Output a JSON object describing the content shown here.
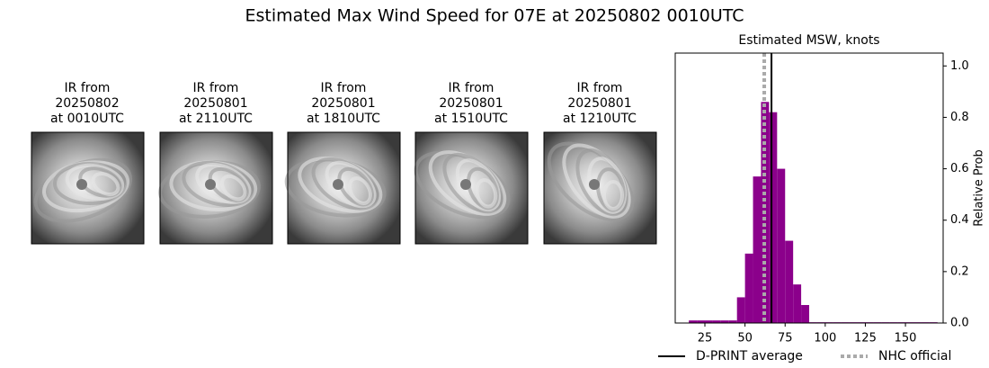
{
  "title": "Estimated Max Wind Speed for 07E at 20250802 0010UTC",
  "panels": [
    {
      "lines": [
        "IR from",
        "20250802",
        "at 0010UTC"
      ]
    },
    {
      "lines": [
        "IR from",
        "20250801",
        "at 2110UTC"
      ]
    },
    {
      "lines": [
        "IR from",
        "20250801",
        "at 1810UTC"
      ]
    },
    {
      "lines": [
        "IR from",
        "20250801",
        "at 1510UTC"
      ]
    },
    {
      "lines": [
        "IR from",
        "20250801",
        "at 1210UTC"
      ]
    }
  ],
  "chart_data": {
    "type": "histogram",
    "title": "Estimated MSW, knots",
    "y_label": "Relative Prob",
    "color": "#8b008b",
    "bins": [
      15,
      20,
      25,
      30,
      35,
      40,
      45,
      50,
      55,
      60,
      65,
      70,
      75,
      80,
      85,
      90,
      95,
      100,
      105,
      110,
      115,
      120,
      125,
      130,
      135,
      140,
      145,
      150,
      155,
      160,
      165,
      170
    ],
    "counts": [
      0.01,
      0.01,
      0.01,
      0.01,
      0.01,
      0.01,
      0.1,
      0.27,
      0.57,
      0.86,
      0.82,
      0.6,
      0.32,
      0.15,
      0.07,
      0.003,
      0.003,
      0.003,
      0.003,
      0.003,
      0.003,
      0.003,
      0.003,
      0.003,
      0.003,
      0.003,
      0.003,
      0.003,
      0.003,
      0.003,
      0.003
    ],
    "xlim": [
      6.5,
      173.5
    ],
    "ylim": [
      0,
      1.05
    ],
    "xticks": [
      25,
      50,
      75,
      100,
      125,
      150
    ],
    "yticks": [
      {
        "value": 0,
        "label": "0.0"
      },
      0.2,
      0.4,
      0.6,
      0.8,
      {
        "value": 1,
        "label": "1.0"
      }
    ],
    "y_axis_side": "right",
    "lines": [
      {
        "name": "D-PRINT average",
        "value": 66.5,
        "color": "#000000",
        "style": "solid"
      },
      {
        "name": "NHC official",
        "value": 62,
        "color": "#aaaaaa",
        "style": "dotted"
      }
    ]
  }
}
